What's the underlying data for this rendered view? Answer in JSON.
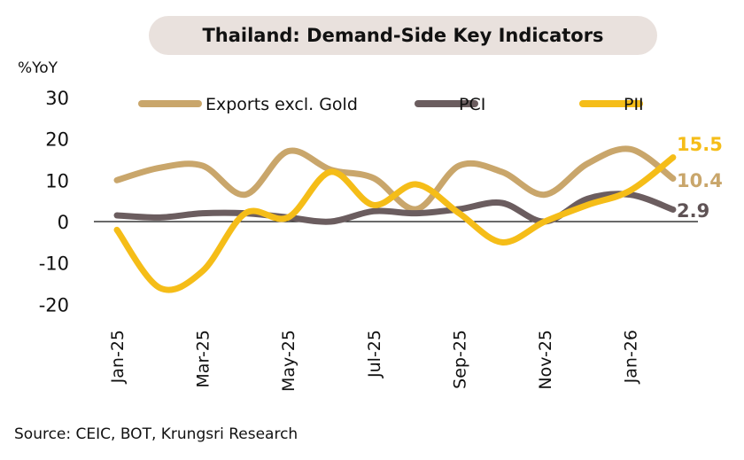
{
  "chart_data": {
    "type": "line",
    "title": "Thailand: Demand-Side Key Indicators",
    "ylabel": "%YoY",
    "xlabel": "",
    "ylim": [
      -20,
      30
    ],
    "yticks": [
      30,
      20,
      10,
      0,
      -10,
      -20
    ],
    "x": [
      "Jan-25",
      "Feb-25",
      "Mar-25",
      "Apr-25",
      "May-25",
      "Jun-25",
      "Jul-25",
      "Aug-25",
      "Sep-25",
      "Oct-25",
      "Nov-25",
      "Dec-25",
      "Jan-26",
      "Feb-26"
    ],
    "xtick_labels": [
      "Jan-25",
      "Mar-25",
      "May-25",
      "Jul-25",
      "Sep-25",
      "Nov-25",
      "Jan-26"
    ],
    "legend_position": "top",
    "grid": false,
    "series": [
      {
        "name": "Exports excl. Gold",
        "color": "#c9a66b",
        "values": [
          10,
          13,
          13.5,
          6.5,
          17,
          12.5,
          10.5,
          3,
          13.5,
          12,
          6.5,
          14,
          17.5,
          10.4
        ],
        "end_label": "10.4"
      },
      {
        "name": "PCI",
        "color": "#6b5d5f",
        "values": [
          1.5,
          1,
          2,
          2,
          1,
          0,
          2.5,
          2,
          3,
          4.5,
          0,
          5.5,
          6.5,
          2.9
        ],
        "end_label": "2.9"
      },
      {
        "name": "PII",
        "color": "#f5bd18",
        "values": [
          -2,
          -16,
          -12,
          2,
          1,
          12,
          4,
          9,
          2,
          -5,
          0,
          4,
          7.5,
          15.5
        ],
        "end_label": "15.5"
      }
    ]
  },
  "source": "Source: CEIC, BOT, Krungsri Research"
}
